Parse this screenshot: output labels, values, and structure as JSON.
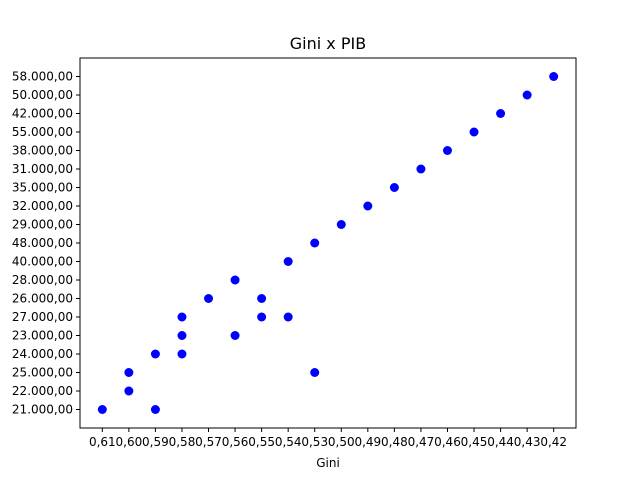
{
  "chart_data": {
    "type": "scatter",
    "title": "Gini x PIB",
    "xlabel": "Gini",
    "ylabel": "",
    "x_categories": [
      "0,61",
      "0,60",
      "0,59",
      "0,58",
      "0,57",
      "0,56",
      "0,55",
      "0,54",
      "0,53",
      "0,50",
      "0,49",
      "0,48",
      "0,47",
      "0,46",
      "0,45",
      "0,44",
      "0,43",
      "0,42"
    ],
    "y_categories": [
      "21.000,00",
      "22.000,00",
      "25.000,00",
      "24.000,00",
      "23.000,00",
      "27.000,00",
      "26.000,00",
      "28.000,00",
      "40.000,00",
      "48.000,00",
      "29.000,00",
      "32.000,00",
      "35.000,00",
      "31.000,00",
      "38.000,00",
      "55.000,00",
      "42.000,00",
      "50.000,00",
      "58.000,00"
    ],
    "grid": false,
    "legend": "none",
    "marker_color": "#0000ff",
    "points": [
      {
        "x": "0,61",
        "y": "21.000,00"
      },
      {
        "x": "0,60",
        "y": "22.000,00"
      },
      {
        "x": "0,60",
        "y": "25.000,00"
      },
      {
        "x": "0,59",
        "y": "21.000,00"
      },
      {
        "x": "0,59",
        "y": "24.000,00"
      },
      {
        "x": "0,58",
        "y": "24.000,00"
      },
      {
        "x": "0,58",
        "y": "23.000,00"
      },
      {
        "x": "0,58",
        "y": "27.000,00"
      },
      {
        "x": "0,57",
        "y": "26.000,00"
      },
      {
        "x": "0,56",
        "y": "23.000,00"
      },
      {
        "x": "0,56",
        "y": "28.000,00"
      },
      {
        "x": "0,55",
        "y": "27.000,00"
      },
      {
        "x": "0,55",
        "y": "26.000,00"
      },
      {
        "x": "0,54",
        "y": "27.000,00"
      },
      {
        "x": "0,54",
        "y": "40.000,00"
      },
      {
        "x": "0,53",
        "y": "25.000,00"
      },
      {
        "x": "0,53",
        "y": "48.000,00"
      },
      {
        "x": "0,50",
        "y": "29.000,00"
      },
      {
        "x": "0,49",
        "y": "32.000,00"
      },
      {
        "x": "0,48",
        "y": "35.000,00"
      },
      {
        "x": "0,47",
        "y": "31.000,00"
      },
      {
        "x": "0,46",
        "y": "38.000,00"
      },
      {
        "x": "0,45",
        "y": "55.000,00"
      },
      {
        "x": "0,44",
        "y": "42.000,00"
      },
      {
        "x": "0,43",
        "y": "50.000,00"
      },
      {
        "x": "0,42",
        "y": "58.000,00"
      }
    ]
  }
}
